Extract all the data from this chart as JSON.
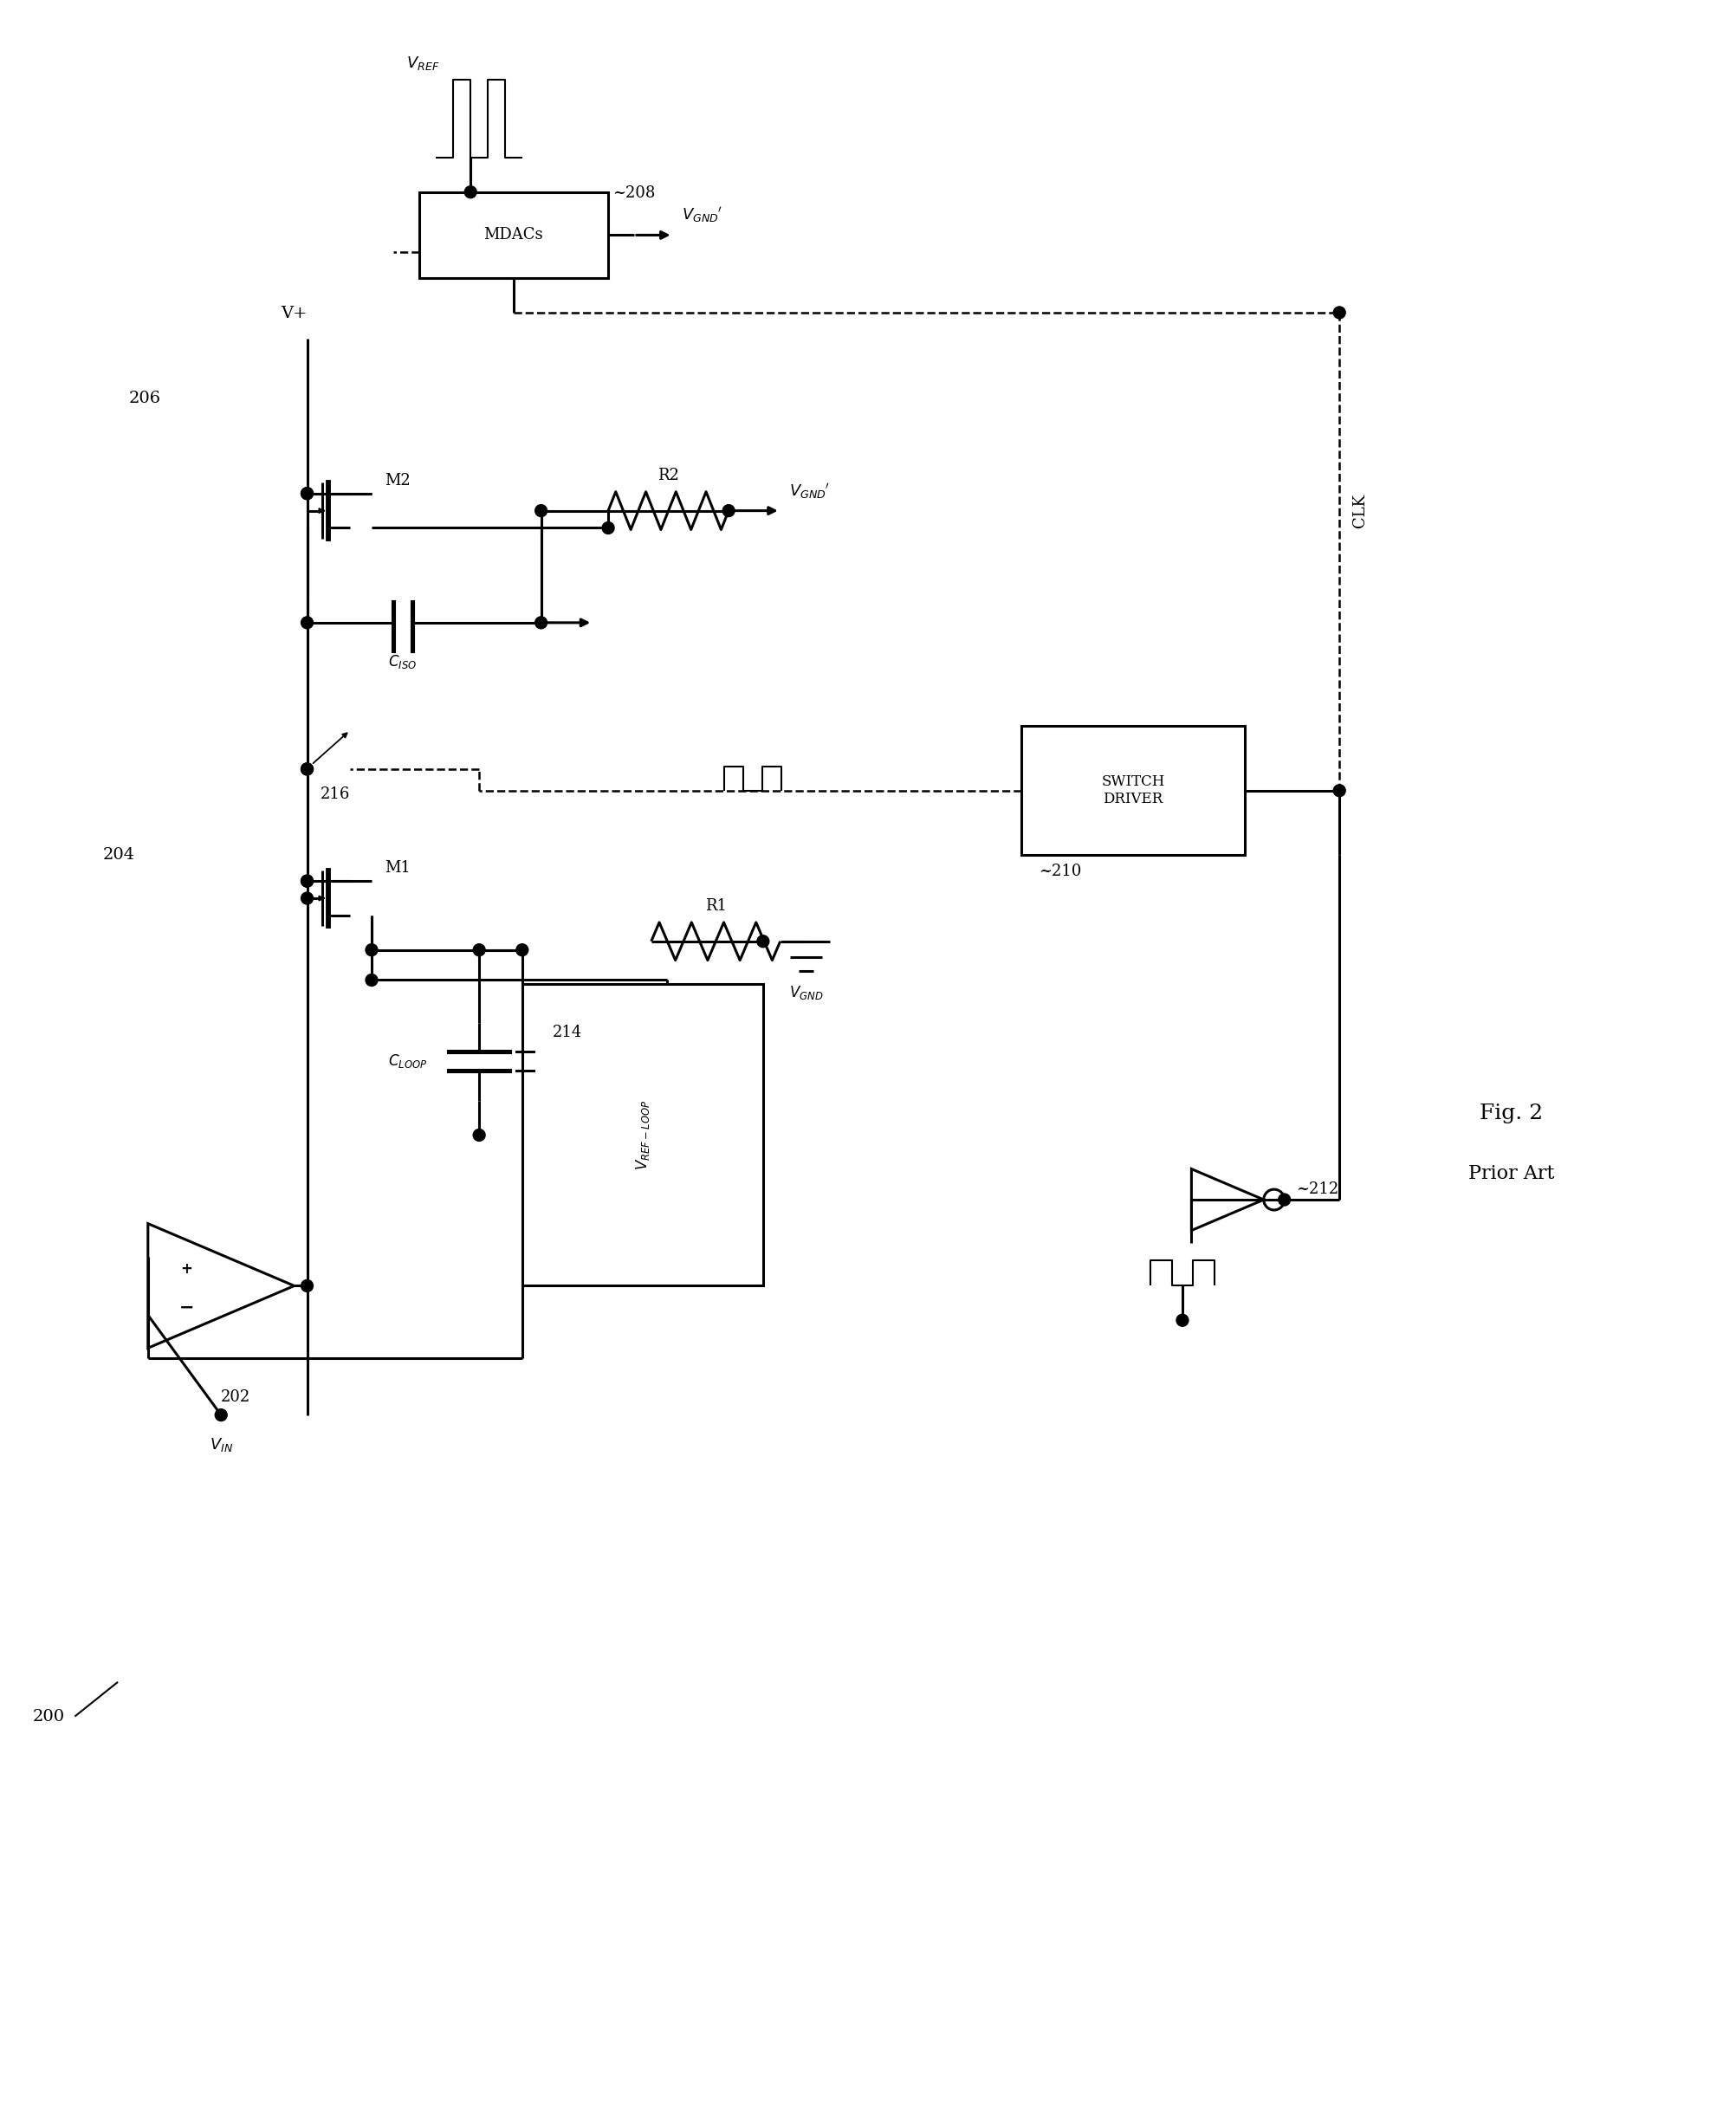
{
  "fig_width": 20.04,
  "fig_height": 24.36,
  "lw": 2.2,
  "lwt": 1.5,
  "lwd": 1.8,
  "n200": "200",
  "n202": "202",
  "n204": "204",
  "n206": "206",
  "n208": "~208",
  "n210": "~210",
  "n212": "~212",
  "n214": "214",
  "n216": "216",
  "tVIN": "$V_{IN}$",
  "tVREF": "$V_{REF}$",
  "tVGp": "$V_{GND}$$'$",
  "tVG": "$V_{GND}$",
  "tVp": "V+",
  "tCLK": "CLK",
  "tM1": "M1",
  "tM2": "M2",
  "tR1": "R1",
  "tR2": "R2",
  "tCISO": "$C_{ISO}$",
  "tCLOOP": "$C_{LOOP}$",
  "tVRL": "$V_{REF-LOOP}$",
  "tMDAC": "MDACs",
  "tSWD": "SWITCH\nDRIVER",
  "tFIG": "Fig. 2",
  "tPA": "Prior Art"
}
